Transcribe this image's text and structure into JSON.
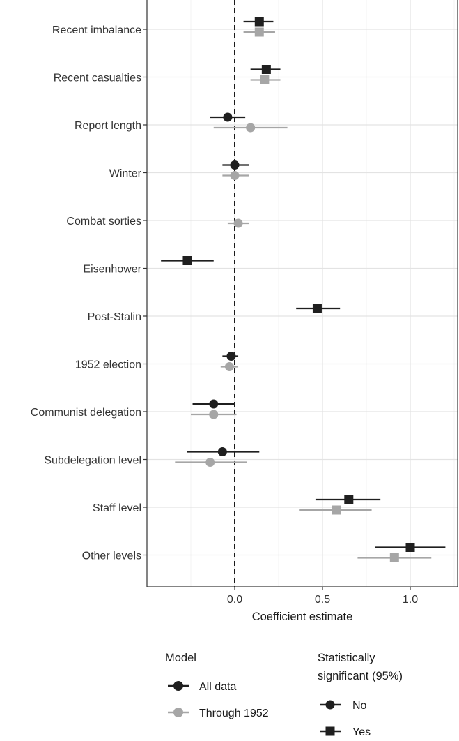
{
  "chart_data": {
    "type": "coefficient-plot",
    "xlabel": "Coefficient estimate",
    "xlim": [
      -0.5,
      1.27
    ],
    "xticks": [
      0.0,
      0.5,
      1.0
    ],
    "xtick_labels": [
      "0.0",
      "0.5",
      "1.0"
    ],
    "reference_line": 0,
    "grid": true,
    "categories": [
      "Recent imbalance",
      "Recent casualties",
      "Report length",
      "Winter",
      "Combat sorties",
      "Eisenhower",
      "Post-Stalin",
      "1952 election",
      "Communist delegation",
      "Subdelegation level",
      "Staff level",
      "Other levels"
    ],
    "series": [
      {
        "name": "All data",
        "color": "#1f1f1f",
        "points": [
          {
            "category": "Recent imbalance",
            "estimate": 0.14,
            "low": 0.05,
            "high": 0.22,
            "significant": true
          },
          {
            "category": "Recent casualties",
            "estimate": 0.18,
            "low": 0.09,
            "high": 0.26,
            "significant": true
          },
          {
            "category": "Report length",
            "estimate": -0.04,
            "low": -0.14,
            "high": 0.06,
            "significant": false
          },
          {
            "category": "Winter",
            "estimate": 0.0,
            "low": -0.07,
            "high": 0.08,
            "significant": false
          },
          {
            "category": "Eisenhower",
            "estimate": -0.27,
            "low": -0.42,
            "high": -0.12,
            "significant": true
          },
          {
            "category": "Post-Stalin",
            "estimate": 0.47,
            "low": 0.35,
            "high": 0.6,
            "significant": true
          },
          {
            "category": "1952 election",
            "estimate": -0.02,
            "low": -0.07,
            "high": 0.02,
            "significant": false
          },
          {
            "category": "Communist delegation",
            "estimate": -0.12,
            "low": -0.24,
            "high": 0.0,
            "significant": false
          },
          {
            "category": "Subdelegation level",
            "estimate": -0.07,
            "low": -0.27,
            "high": 0.14,
            "significant": false
          },
          {
            "category": "Staff level",
            "estimate": 0.65,
            "low": 0.46,
            "high": 0.83,
            "significant": true
          },
          {
            "category": "Other levels",
            "estimate": 1.0,
            "low": 0.8,
            "high": 1.2,
            "significant": true
          }
        ]
      },
      {
        "name": "Through 1952",
        "color": "#a6a6a6",
        "points": [
          {
            "category": "Recent imbalance",
            "estimate": 0.14,
            "low": 0.05,
            "high": 0.23,
            "significant": true
          },
          {
            "category": "Recent casualties",
            "estimate": 0.17,
            "low": 0.09,
            "high": 0.26,
            "significant": true
          },
          {
            "category": "Report length",
            "estimate": 0.09,
            "low": -0.12,
            "high": 0.3,
            "significant": false
          },
          {
            "category": "Winter",
            "estimate": 0.0,
            "low": -0.07,
            "high": 0.08,
            "significant": false
          },
          {
            "category": "Combat sorties",
            "estimate": 0.02,
            "low": -0.04,
            "high": 0.08,
            "significant": false
          },
          {
            "category": "1952 election",
            "estimate": -0.03,
            "low": -0.08,
            "high": 0.02,
            "significant": false
          },
          {
            "category": "Communist delegation",
            "estimate": -0.12,
            "low": -0.25,
            "high": 0.01,
            "significant": false
          },
          {
            "category": "Subdelegation level",
            "estimate": -0.14,
            "low": -0.34,
            "high": 0.07,
            "significant": false
          },
          {
            "category": "Staff level",
            "estimate": 0.58,
            "low": 0.37,
            "high": 0.78,
            "significant": true
          },
          {
            "category": "Other levels",
            "estimate": 0.91,
            "low": 0.7,
            "high": 1.12,
            "significant": true
          }
        ]
      }
    ],
    "legend": {
      "model": {
        "title": "Model",
        "entries": [
          {
            "label": "All data",
            "color": "#1f1f1f"
          },
          {
            "label": "Through 1952",
            "color": "#a6a6a6"
          }
        ]
      },
      "significance": {
        "title_line1": "Statistically",
        "title_line2": "significant (95%)",
        "entries": [
          {
            "label": "No",
            "shape": "circle"
          },
          {
            "label": "Yes",
            "shape": "square"
          }
        ]
      },
      "position": "bottom"
    }
  }
}
